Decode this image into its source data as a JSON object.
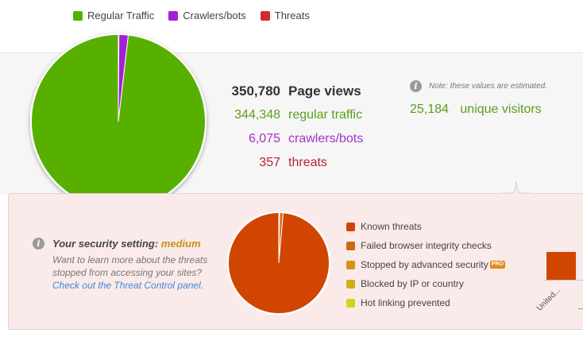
{
  "traffic_legend": [
    {
      "label": "Regular Traffic",
      "color": "#57b000"
    },
    {
      "label": "Crawlers/bots",
      "color": "#a41fd8"
    },
    {
      "label": "Threats",
      "color": "#d42b2b"
    }
  ],
  "chart_data": [
    {
      "type": "pie",
      "categories": [
        "Regular Traffic",
        "Crawlers/bots",
        "Threats"
      ],
      "values": [
        344348,
        6075,
        357
      ],
      "colors": [
        "#57b000",
        "#a41fd8",
        "#d42b2b"
      ],
      "title": ""
    },
    {
      "type": "pie",
      "categories": [
        "Known threats",
        "Failed browser integrity checks",
        "Stopped by advanced security",
        "Blocked by IP or country",
        "Hot linking prevented"
      ],
      "values": [
        352,
        4,
        0,
        0,
        1
      ],
      "colors": [
        "#d04500",
        "#cc6a10",
        "#d89214",
        "#cfaf16",
        "#d6d21c"
      ],
      "title": ""
    },
    {
      "type": "bar",
      "categories": [
        "United..."
      ],
      "values": [
        357
      ],
      "colors": [
        "#d04500"
      ],
      "title": ""
    }
  ],
  "stats": {
    "page_views": {
      "value": "350,780",
      "label": "Page views"
    },
    "regular": {
      "value": "344,348",
      "label": "regular traffic"
    },
    "crawlers": {
      "value": "6,075",
      "label": "crawlers/bots"
    },
    "threats": {
      "value": "357",
      "label": "threats"
    }
  },
  "note": {
    "icon": "info-icon",
    "text": "Note: these values are estimated."
  },
  "unique_visitors": {
    "value": "25,184",
    "label": "unique visitors"
  },
  "security": {
    "title_prefix": "Your security setting: ",
    "level": "medium",
    "body": "Want to learn more about the threats stopped from accessing your sites?",
    "link": "Check out the Threat Control panel."
  },
  "threat_legend": [
    {
      "label": "Known threats",
      "color": "#d04500"
    },
    {
      "label": "Failed browser integrity checks",
      "color": "#cc6a10"
    },
    {
      "label": "Stopped by advanced security",
      "color": "#d89214",
      "badge": "PRO"
    },
    {
      "label": "Blocked by IP or country",
      "color": "#cfaf16"
    },
    {
      "label": "Hot linking prevented",
      "color": "#d6d21c"
    }
  ],
  "country_bar": {
    "label": "United..."
  }
}
